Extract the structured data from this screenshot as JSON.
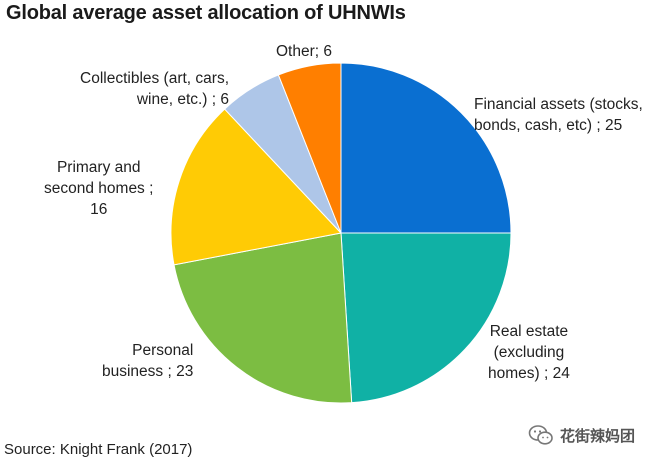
{
  "chart_data": {
    "type": "pie",
    "title": "Global average asset allocation of UHNWIs",
    "source": "Source: Knight Frank (2017)",
    "slices": [
      {
        "label_lines": [
          "Financial assets (stocks,",
          "bonds,  cash, etc) ; 25"
        ],
        "value": 25,
        "color": "#0a6fd1"
      },
      {
        "label_lines": [
          "Real estate",
          "(excluding",
          "homes)  ; 24"
        ],
        "value": 24,
        "color": "#10b1a5"
      },
      {
        "label_lines": [
          "Personal",
          "business  ; 23"
        ],
        "value": 23,
        "color": "#7cbd42"
      },
      {
        "label_lines": [
          "Primary and",
          "second homes  ;",
          "16"
        ],
        "value": 16,
        "color": "#ffcb05"
      },
      {
        "label_lines": [
          "Collectibles (art, cars,",
          "wine, etc.) ; 6"
        ],
        "value": 6,
        "color": "#aec6e8"
      },
      {
        "label_lines": [
          "Other; 6"
        ],
        "value": 6,
        "color": "#ff7f00"
      }
    ],
    "start_angle": "12 o'clock",
    "direction": "clockwise"
  },
  "watermark": {
    "text": "花街辣妈团",
    "icon": "wechat-icon"
  }
}
